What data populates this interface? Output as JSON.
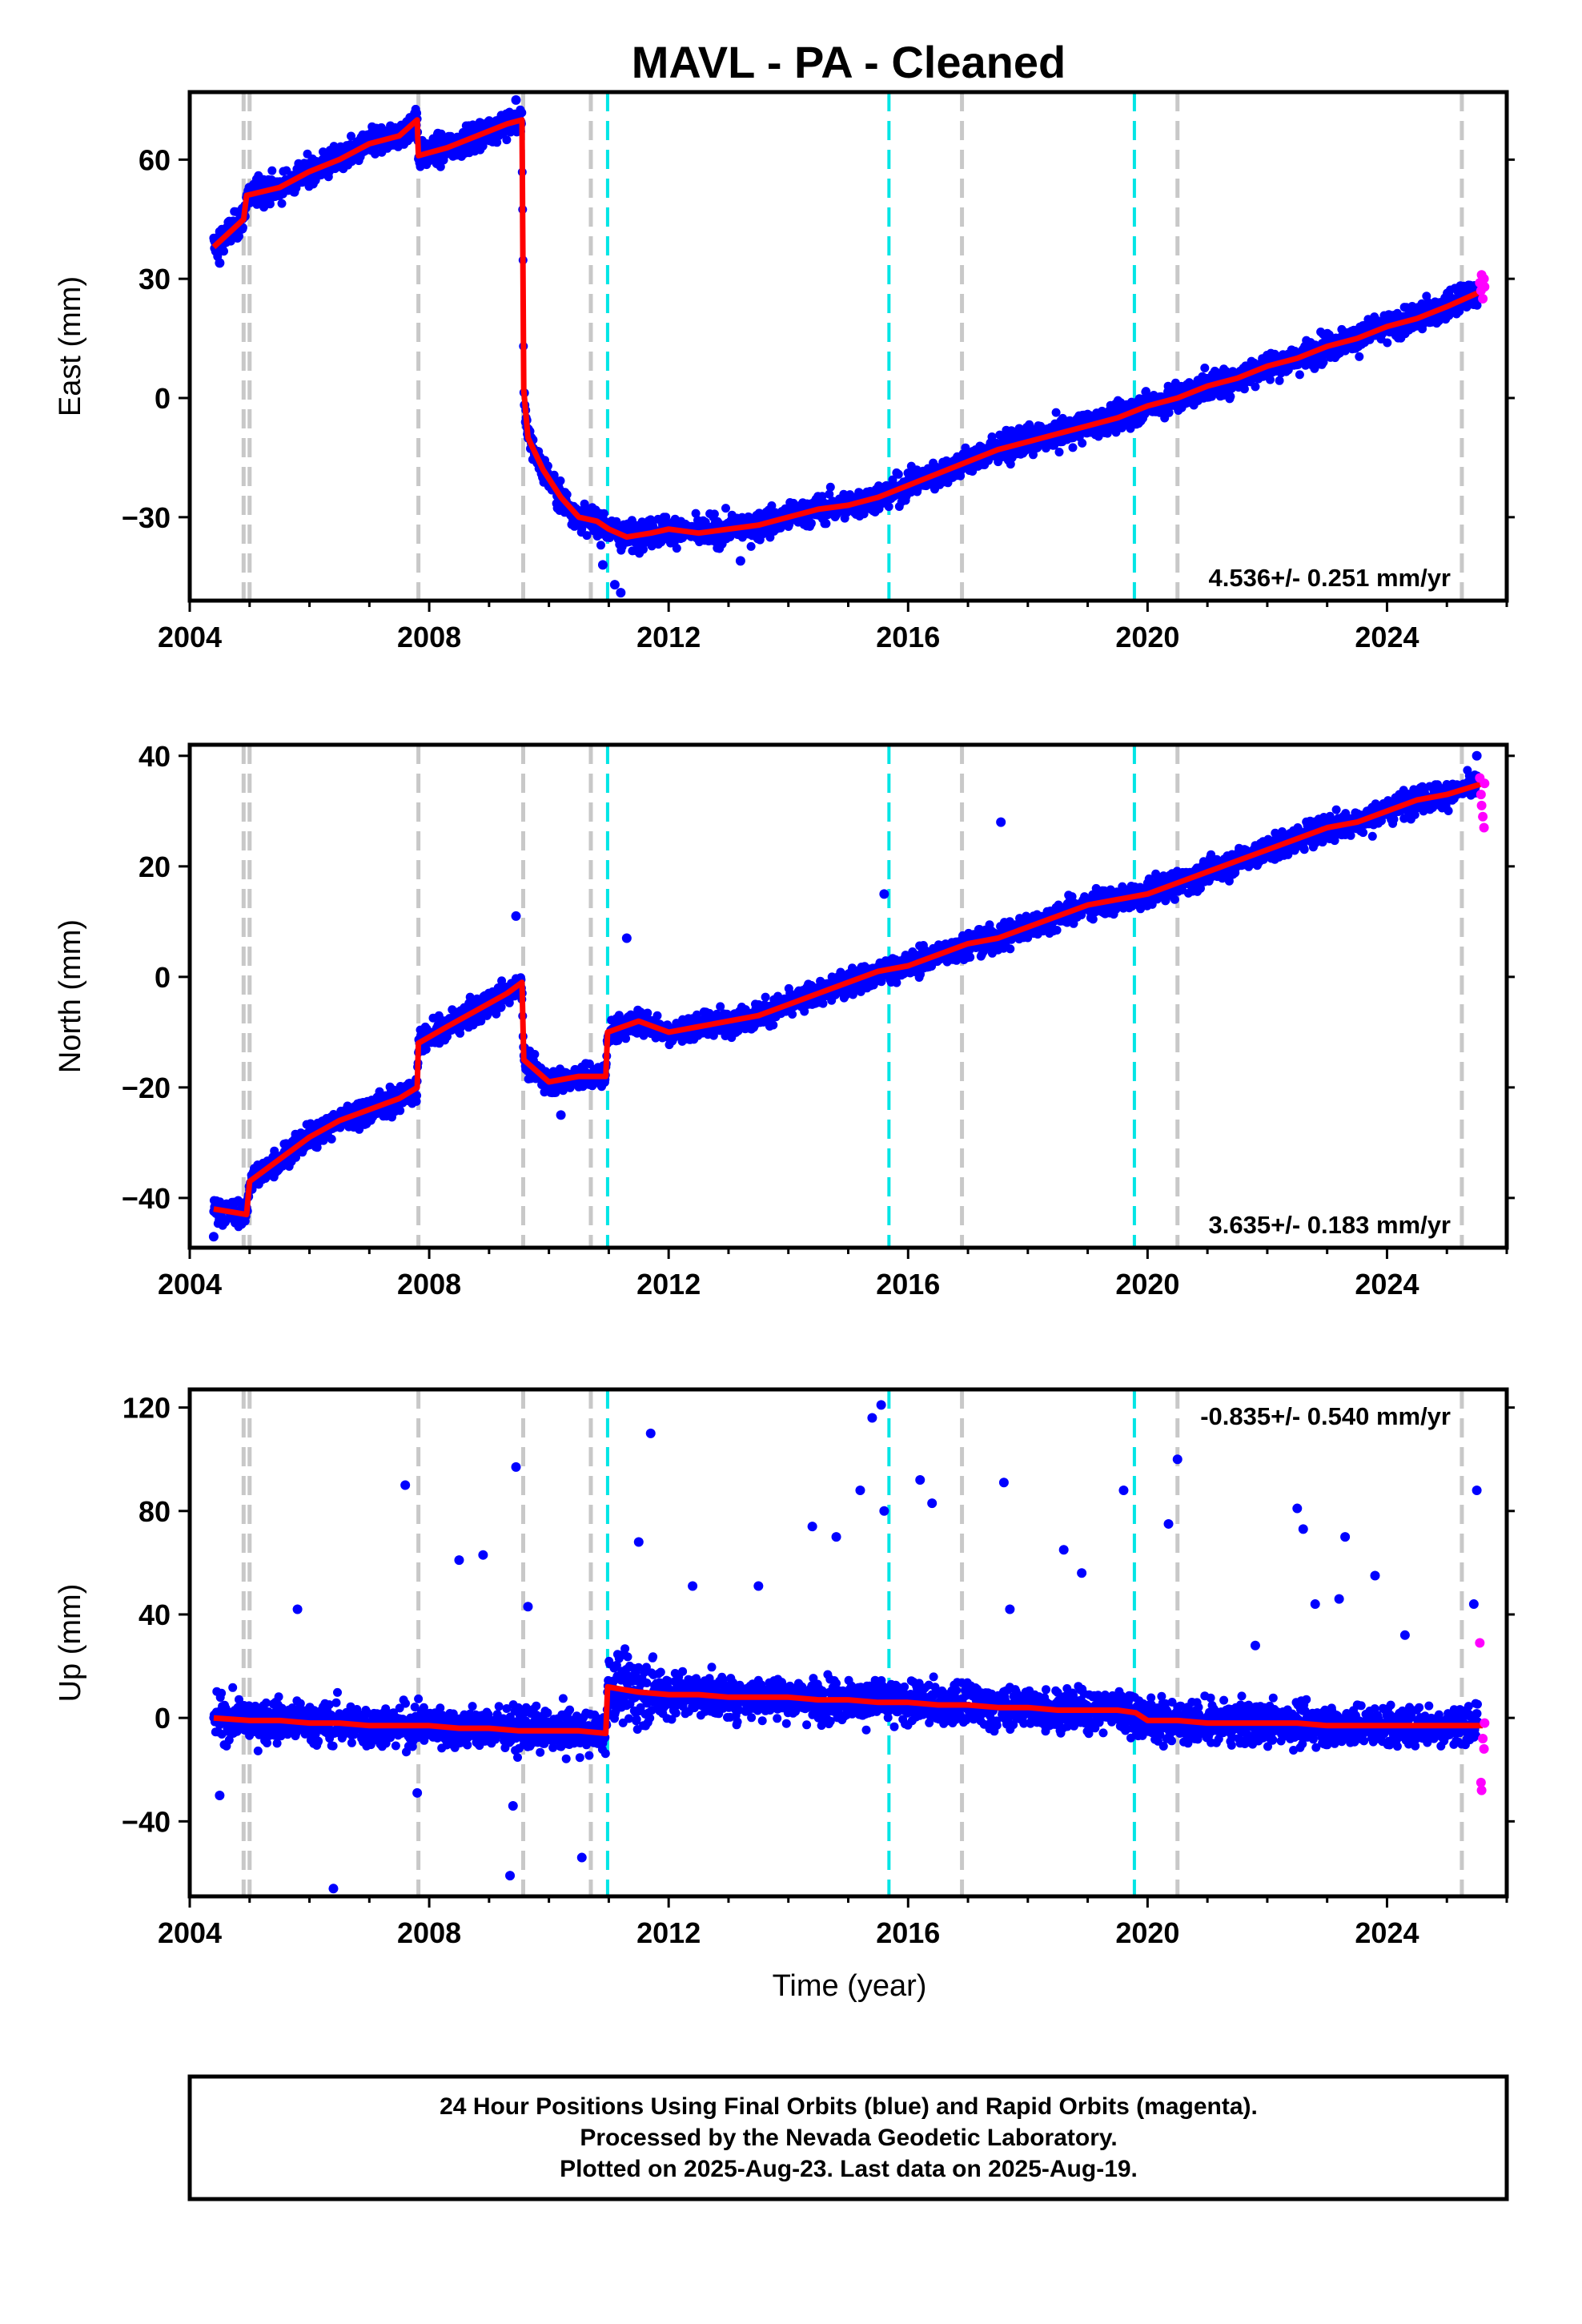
{
  "title": "MAVL  - PA - Cleaned",
  "xlabel": "Time (year)",
  "footer": {
    "line1": "24 Hour Positions Using Final Orbits (blue) and Rapid Orbits (magenta).",
    "line2": "Processed by the Nevada Geodetic Laboratory.",
    "line3": "Plotted on 2025-Aug-23. Last data on 2025-Aug-19."
  },
  "colors": {
    "final_points": "#0000ff",
    "rapid_points": "#ff00ff",
    "model_line": "#ff0000",
    "equipment_change_lines": "#c8c8c8",
    "earthquake_lines": "#00e5e5",
    "axis": "#000000"
  },
  "chart_data": [
    {
      "type": "scatter",
      "panel": "east",
      "ylabel": "East (mm)",
      "rate_label": "4.536+/- 0.251 mm/yr",
      "rate_position": "bottom-right",
      "xlim": [
        2004.0,
        2026.0
      ],
      "ylim": [
        -51,
        77
      ],
      "x_ticks": [
        2004,
        2008,
        2012,
        2016,
        2020,
        2024
      ],
      "x_tick_labels": [
        "2004",
        "2008",
        "2012",
        "2016",
        "2020",
        "2024"
      ],
      "y_ticks": [
        -30,
        0,
        30,
        60
      ],
      "y_tick_labels": [
        "−30",
        "0",
        "30",
        "60"
      ],
      "series": [
        {
          "role": "model",
          "color": "#ff0000",
          "x": [
            2004.4,
            2004.9,
            2004.95,
            2005.5,
            2006.0,
            2006.5,
            2007.0,
            2007.5,
            2007.8,
            2007.82,
            2008.3,
            2008.8,
            2009.3,
            2009.55,
            2009.58,
            2009.65,
            2009.9,
            2010.2,
            2010.5,
            2010.8,
            2011.0,
            2011.3,
            2011.7,
            2012.0,
            2012.5,
            2013.0,
            2013.5,
            2014.0,
            2014.5,
            2015.0,
            2015.5,
            2016.0,
            2016.5,
            2017.0,
            2017.5,
            2018.0,
            2018.5,
            2019.0,
            2019.5,
            2020.0,
            2020.5,
            2021.0,
            2021.5,
            2022.0,
            2022.5,
            2023.0,
            2023.5,
            2024.0,
            2024.5,
            2025.0,
            2025.6
          ],
          "y": [
            38,
            45,
            51,
            53,
            57,
            60,
            64,
            66,
            70,
            61,
            63,
            66,
            69,
            70,
            2,
            -10,
            -18,
            -25,
            -30,
            -31,
            -33,
            -35,
            -34,
            -33,
            -34,
            -33,
            -32,
            -30,
            -28,
            -27,
            -25,
            -22,
            -19,
            -16,
            -13,
            -11,
            -9,
            -7,
            -5,
            -2,
            0,
            3,
            5,
            8,
            10,
            13,
            15,
            18,
            20,
            23,
            27
          ]
        },
        {
          "role": "final_orbits",
          "color": "#0000ff",
          "outliers": [
            [
              2009.45,
              75
            ],
            [
              2011.1,
              -47
            ],
            [
              2011.2,
              -49
            ],
            [
              2010.9,
              -42
            ],
            [
              2013.2,
              -41
            ],
            [
              2004.5,
              34
            ]
          ]
        },
        {
          "role": "rapid_orbits",
          "color": "#ff00ff",
          "x": [
            2025.55,
            2025.57,
            2025.58,
            2025.6,
            2025.62,
            2025.63
          ],
          "y": [
            29,
            27,
            31,
            25,
            30,
            28
          ]
        }
      ],
      "event_lines": {
        "equipment": [
          2004.9,
          2005.0,
          2007.82,
          2009.57,
          2010.7,
          2016.9,
          2020.5,
          2025.25
        ],
        "earthquake": [
          2010.98,
          2015.68,
          2019.78
        ]
      }
    },
    {
      "type": "scatter",
      "panel": "north",
      "ylabel": "North (mm)",
      "rate_label": "3.635+/- 0.183 mm/yr",
      "rate_position": "bottom-right",
      "xlim": [
        2004.0,
        2026.0
      ],
      "ylim": [
        -49,
        42
      ],
      "x_ticks": [
        2004,
        2008,
        2012,
        2016,
        2020,
        2024
      ],
      "x_tick_labels": [
        "2004",
        "2008",
        "2012",
        "2016",
        "2020",
        "2024"
      ],
      "y_ticks": [
        -40,
        -20,
        0,
        20,
        40
      ],
      "y_tick_labels": [
        "−40",
        "−20",
        "0",
        "20",
        "40"
      ],
      "series": [
        {
          "role": "model",
          "color": "#ff0000",
          "x": [
            2004.4,
            2004.95,
            2005.0,
            2005.5,
            2006.0,
            2006.5,
            2007.0,
            2007.5,
            2007.8,
            2007.82,
            2008.3,
            2008.8,
            2009.3,
            2009.55,
            2009.58,
            2010.0,
            2010.5,
            2010.95,
            2010.98,
            2011.5,
            2012.0,
            2012.5,
            2013.0,
            2013.5,
            2014.0,
            2014.5,
            2015.0,
            2015.5,
            2016.0,
            2016.5,
            2017.0,
            2017.5,
            2018.0,
            2018.5,
            2019.0,
            2019.5,
            2020.0,
            2020.5,
            2021.0,
            2021.5,
            2022.0,
            2022.5,
            2023.0,
            2023.5,
            2024.0,
            2024.5,
            2025.0,
            2025.6
          ],
          "y": [
            -42,
            -43,
            -37,
            -33,
            -29,
            -26,
            -24,
            -22,
            -20,
            -12,
            -9,
            -6,
            -3,
            -1,
            -15,
            -19,
            -18,
            -18,
            -10,
            -8,
            -10,
            -9,
            -8,
            -7,
            -5,
            -3,
            -1,
            1,
            2,
            4,
            6,
            7,
            9,
            11,
            13,
            14,
            15,
            17,
            19,
            21,
            23,
            25,
            27,
            28,
            30,
            32,
            33,
            35
          ]
        },
        {
          "role": "final_orbits",
          "color": "#0000ff",
          "outliers": [
            [
              2009.45,
              11
            ],
            [
              2017.55,
              28
            ],
            [
              2015.6,
              15
            ],
            [
              2011.3,
              7
            ],
            [
              2025.5,
              40
            ],
            [
              2004.4,
              -47
            ],
            [
              2010.2,
              -25
            ]
          ]
        },
        {
          "role": "rapid_orbits",
          "color": "#ff00ff",
          "x": [
            2025.55,
            2025.57,
            2025.58,
            2025.6,
            2025.62,
            2025.63
          ],
          "y": [
            36,
            33,
            31,
            29,
            27,
            35
          ]
        }
      ],
      "event_lines": {
        "equipment": [
          2004.9,
          2005.0,
          2007.82,
          2009.57,
          2010.7,
          2016.9,
          2020.5,
          2025.25
        ],
        "earthquake": [
          2010.98,
          2015.68,
          2019.78
        ]
      }
    },
    {
      "type": "scatter",
      "panel": "up",
      "ylabel": "Up (mm)",
      "rate_label": "-0.835+/- 0.540 mm/yr",
      "rate_position": "top-right",
      "xlim": [
        2004.0,
        2026.0
      ],
      "ylim": [
        -69,
        127
      ],
      "x_ticks": [
        2004,
        2008,
        2012,
        2016,
        2020,
        2024
      ],
      "x_tick_labels": [
        "2004",
        "2008",
        "2012",
        "2016",
        "2020",
        "2024"
      ],
      "y_ticks": [
        -40,
        0,
        40,
        80,
        120
      ],
      "y_tick_labels": [
        "−40",
        "0",
        "40",
        "80",
        "120"
      ],
      "series": [
        {
          "role": "model",
          "color": "#ff0000",
          "x": [
            2004.4,
            2005.0,
            2005.5,
            2006.0,
            2006.5,
            2007.0,
            2007.5,
            2008.0,
            2008.5,
            2009.0,
            2009.5,
            2010.0,
            2010.5,
            2010.95,
            2010.98,
            2011.5,
            2012.0,
            2012.5,
            2013.0,
            2013.5,
            2014.0,
            2014.5,
            2015.0,
            2015.5,
            2016.0,
            2016.5,
            2017.0,
            2017.5,
            2018.0,
            2018.5,
            2019.0,
            2019.5,
            2019.8,
            2020.0,
            2020.5,
            2021.0,
            2021.5,
            2022.0,
            2022.5,
            2023.0,
            2023.5,
            2024.0,
            2024.5,
            2025.0,
            2025.6
          ],
          "y": [
            0,
            -1,
            -1,
            -2,
            -2,
            -3,
            -3,
            -3,
            -4,
            -4,
            -5,
            -5,
            -5,
            -6,
            12,
            10,
            9,
            9,
            8,
            8,
            8,
            7,
            7,
            6,
            6,
            5,
            5,
            4,
            4,
            3,
            3,
            3,
            2,
            -1,
            -1,
            -2,
            -2,
            -2,
            -2,
            -3,
            -3,
            -3,
            -3,
            -3,
            -3
          ]
        },
        {
          "role": "final_orbits",
          "color": "#0000ff",
          "outliers": [
            [
              2009.45,
              97
            ],
            [
              2007.6,
              90
            ],
            [
              2008.5,
              61
            ],
            [
              2008.9,
              63
            ],
            [
              2005.8,
              42
            ],
            [
              2009.65,
              43
            ],
            [
              2011.7,
              110
            ],
            [
              2011.5,
              68
            ],
            [
              2012.4,
              51
            ],
            [
              2013.5,
              51
            ],
            [
              2014.4,
              74
            ],
            [
              2014.8,
              70
            ],
            [
              2015.2,
              88
            ],
            [
              2015.4,
              116
            ],
            [
              2015.55,
              121
            ],
            [
              2015.6,
              80
            ],
            [
              2016.2,
              92
            ],
            [
              2016.4,
              83
            ],
            [
              2017.6,
              91
            ],
            [
              2017.7,
              42
            ],
            [
              2018.6,
              65
            ],
            [
              2018.9,
              56
            ],
            [
              2019.6,
              88
            ],
            [
              2020.5,
              100
            ],
            [
              2020.35,
              75
            ],
            [
              2021.8,
              28
            ],
            [
              2022.5,
              81
            ],
            [
              2022.6,
              73
            ],
            [
              2022.8,
              44
            ],
            [
              2023.3,
              70
            ],
            [
              2023.2,
              46
            ],
            [
              2023.8,
              55
            ],
            [
              2024.3,
              32
            ],
            [
              2025.5,
              88
            ],
            [
              2025.45,
              44
            ],
            [
              2006.4,
              -66
            ],
            [
              2009.35,
              -61
            ],
            [
              2009.4,
              -34
            ],
            [
              2010.55,
              -54
            ],
            [
              2007.8,
              -29
            ],
            [
              2004.5,
              -30
            ]
          ]
        },
        {
          "role": "rapid_orbits",
          "color": "#ff00ff",
          "x": [
            2025.55,
            2025.57,
            2025.58,
            2025.6,
            2025.62,
            2025.63
          ],
          "y": [
            29,
            -25,
            -28,
            -8,
            -12,
            -2
          ]
        }
      ],
      "event_lines": {
        "equipment": [
          2004.9,
          2005.0,
          2007.82,
          2009.57,
          2010.7,
          2016.9,
          2020.5,
          2025.25
        ],
        "earthquake": [
          2010.98,
          2015.68,
          2019.78
        ]
      }
    }
  ]
}
